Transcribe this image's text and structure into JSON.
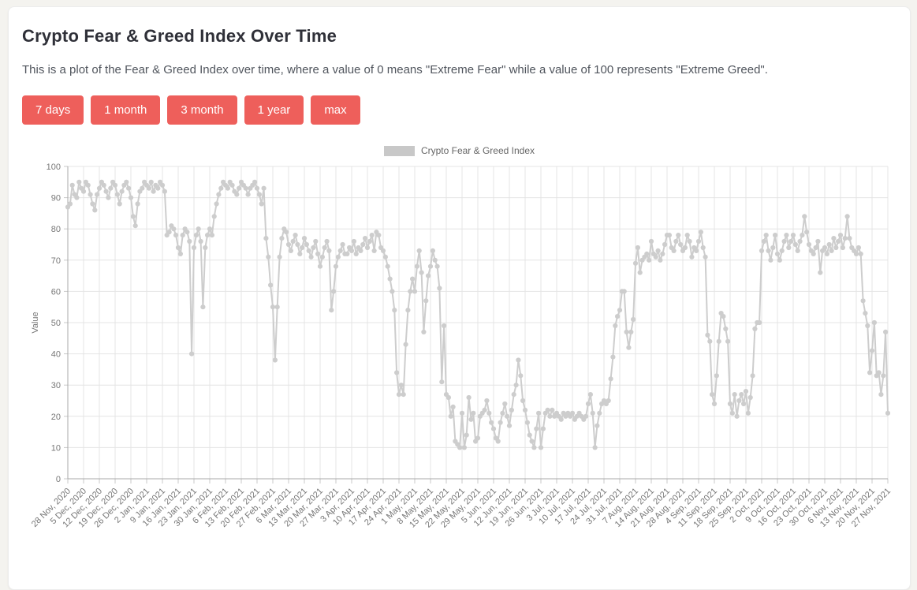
{
  "colors": {
    "accent": "#ee5f5b",
    "page_bg": "#f4f3ef",
    "card_bg": "#ffffff",
    "title_text": "#2f3038",
    "body_text": "#50555d"
  },
  "header": {
    "title": "Crypto Fear & Greed Index Over Time",
    "description": "This is a plot of the Fear & Greed Index over time, where a value of 0 means \"Extreme Fear\" while a value of 100 represents \"Extreme Greed\"."
  },
  "buttons": {
    "items": [
      {
        "label": "7 days"
      },
      {
        "label": "1 month"
      },
      {
        "label": "3 month"
      },
      {
        "label": "1 year"
      },
      {
        "label": "max"
      }
    ]
  },
  "chart_data": {
    "type": "line",
    "legend_label": "Crypto Fear & Greed Index",
    "legend_position": "top",
    "grid": true,
    "ylabel": "Value",
    "ylim": [
      0,
      100
    ],
    "y_ticks": [
      0,
      10,
      20,
      30,
      40,
      50,
      60,
      70,
      80,
      90,
      100
    ],
    "points_per_tick": 7,
    "x_tick_labels": [
      "28 Nov, 2020",
      "5 Dec, 2020",
      "12 Dec, 2020",
      "19 Dec, 2020",
      "26 Dec, 2020",
      "2 Jan, 2021",
      "9 Jan, 2021",
      "16 Jan, 2021",
      "23 Jan, 2021",
      "30 Jan, 2021",
      "6 Feb, 2021",
      "13 Feb, 2021",
      "20 Feb, 2021",
      "27 Feb, 2021",
      "6 Mar, 2021",
      "13 Mar, 2021",
      "20 Mar, 2021",
      "27 Mar, 2021",
      "3 Apr, 2021",
      "10 Apr, 2021",
      "17 Apr, 2021",
      "24 Apr, 2021",
      "1 May, 2021",
      "8 May, 2021",
      "15 May, 2021",
      "22 May, 2021",
      "29 May, 2021",
      "5 Jun, 2021",
      "12 Jun, 2021",
      "19 Jun, 2021",
      "26 Jun, 2021",
      "3 Jul, 2021",
      "10 Jul, 2021",
      "17 Jul, 2021",
      "24 Jul, 2021",
      "31 Jul, 2021",
      "7 Aug, 2021",
      "14 Aug, 2021",
      "21 Aug, 2021",
      "28 Aug, 2021",
      "4 Sep, 2021",
      "11 Sep, 2021",
      "18 Sep, 2021",
      "25 Sep, 2021",
      "2 Oct, 2021",
      "9 Oct, 2021",
      "16 Oct, 2021",
      "23 Oct, 2021",
      "30 Oct, 2021",
      "6 Nov, 2021",
      "13 Nov, 2021",
      "20 Nov, 2021",
      "27 Nov, 2021"
    ],
    "series": [
      {
        "name": "Crypto Fear & Greed Index",
        "values": [
          87,
          88,
          94,
          91,
          90,
          95,
          93,
          92,
          95,
          94,
          91,
          88,
          86,
          91,
          93,
          95,
          94,
          92,
          90,
          93,
          95,
          94,
          91,
          88,
          92,
          94,
          95,
          93,
          90,
          84,
          81,
          88,
          92,
          93,
          95,
          94,
          93,
          95,
          92,
          94,
          93,
          95,
          94,
          92,
          78,
          79,
          81,
          80,
          78,
          74,
          72,
          78,
          80,
          79,
          76,
          40,
          74,
          78,
          80,
          76,
          55,
          74,
          78,
          80,
          78,
          84,
          88,
          91,
          93,
          95,
          94,
          93,
          95,
          94,
          92,
          91,
          93,
          95,
          94,
          93,
          91,
          93,
          94,
          95,
          93,
          91,
          88,
          93,
          77,
          71,
          62,
          55,
          38,
          55,
          71,
          77,
          80,
          79,
          75,
          73,
          76,
          78,
          75,
          72,
          74,
          77,
          75,
          73,
          71,
          74,
          76,
          72,
          68,
          71,
          74,
          76,
          73,
          54,
          60,
          68,
          71,
          73,
          75,
          72,
          72,
          74,
          73,
          76,
          72,
          74,
          73,
          75,
          77,
          74,
          76,
          78,
          73,
          79,
          78,
          74,
          73,
          71,
          68,
          64,
          60,
          54,
          34,
          27,
          30,
          27,
          43,
          54,
          60,
          64,
          60,
          68,
          73,
          66,
          47,
          57,
          65,
          68,
          73,
          70,
          68,
          61,
          31,
          49,
          27,
          26,
          20,
          23,
          12,
          11,
          10,
          21,
          10,
          14,
          26,
          19,
          21,
          12,
          13,
          20,
          21,
          22,
          25,
          21,
          18,
          16,
          13,
          12,
          18,
          21,
          24,
          20,
          17,
          22,
          27,
          30,
          38,
          33,
          25,
          22,
          18,
          14,
          12,
          10,
          16,
          21,
          10,
          16,
          21,
          22,
          20,
          22,
          20,
          21,
          20,
          19,
          21,
          20,
          21,
          20,
          21,
          19,
          20,
          21,
          20,
          19,
          20,
          24,
          27,
          21,
          10,
          17,
          21,
          24,
          25,
          24,
          25,
          32,
          39,
          49,
          52,
          54,
          60,
          60,
          47,
          42,
          47,
          51,
          69,
          74,
          66,
          70,
          71,
          72,
          70,
          76,
          72,
          71,
          73,
          70,
          72,
          75,
          78,
          78,
          74,
          73,
          76,
          78,
          75,
          73,
          74,
          78,
          76,
          71,
          74,
          73,
          76,
          79,
          74,
          71,
          46,
          44,
          27,
          24,
          33,
          44,
          53,
          52,
          48,
          44,
          24,
          21,
          27,
          20,
          25,
          27,
          24,
          28,
          21,
          26,
          33,
          48,
          50,
          50,
          73,
          76,
          78,
          73,
          70,
          74,
          78,
          72,
          70,
          73,
          76,
          78,
          74,
          76,
          78,
          75,
          73,
          76,
          78,
          84,
          79,
          75,
          73,
          72,
          74,
          76,
          66,
          73,
          74,
          72,
          75,
          73,
          77,
          74,
          76,
          78,
          74,
          77,
          84,
          77,
          74,
          73,
          72,
          74,
          72,
          57,
          53,
          49,
          34,
          41,
          50,
          33,
          34,
          27,
          33,
          47,
          21
        ]
      }
    ],
    "style": {
      "line_color": "#cdcdcd",
      "point_color": "#cdcdcd",
      "grid_color": "#e4e4e4",
      "axis_color": "#a9a9a9",
      "tick_stub_color": "#c9c9c9",
      "tick_text_color": "#777777",
      "legend_swatch_color": "#c8c8c8",
      "ylabel_color": "#888888"
    }
  }
}
